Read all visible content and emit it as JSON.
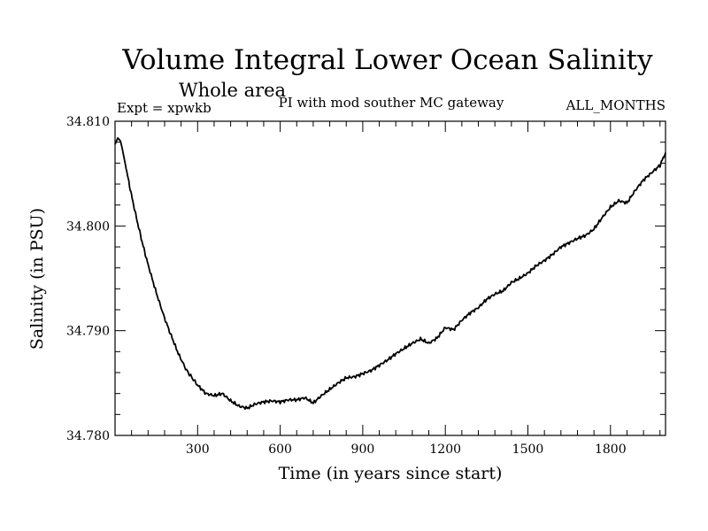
{
  "chart_data": {
    "type": "line",
    "title": "Volume Integral Lower Ocean Salinity",
    "subtitle": "Whole area",
    "annotation_left": "Expt = xpwkb",
    "annotation_center": "PI with mod souther MC gateway",
    "annotation_right": "ALL_MONTHS",
    "xlabel": "Time (in years since start)",
    "ylabel": "Salinity (in PSU)",
    "xlim": [
      0,
      2000
    ],
    "ylim": [
      34.78,
      34.81
    ],
    "xticks": [
      300,
      600,
      900,
      1200,
      1500,
      1800
    ],
    "xtick_labels": [
      "300",
      "600",
      "900",
      "1200",
      "1500",
      "1800"
    ],
    "yticks": [
      34.78,
      34.79,
      34.8,
      34.81
    ],
    "ytick_labels": [
      "34.780",
      "34.790",
      "34.800",
      "34.810"
    ],
    "grid": false,
    "series": [
      {
        "name": "xpwkb",
        "color": "#000000",
        "x": [
          0,
          10,
          20,
          30,
          40,
          60,
          80,
          100,
          120,
          150,
          180,
          200,
          230,
          260,
          300,
          330,
          360,
          390,
          420,
          450,
          480,
          510,
          540,
          570,
          600,
          630,
          660,
          690,
          720,
          750,
          780,
          810,
          840,
          870,
          900,
          930,
          960,
          990,
          1020,
          1050,
          1080,
          1110,
          1140,
          1170,
          1200,
          1230,
          1260,
          1290,
          1320,
          1350,
          1380,
          1410,
          1440,
          1470,
          1500,
          1530,
          1560,
          1590,
          1620,
          1650,
          1680,
          1710,
          1740,
          1770,
          1800,
          1830,
          1860,
          1890,
          1920,
          1950,
          1980,
          2000
        ],
        "y": [
          34.8078,
          34.8084,
          34.8081,
          34.8069,
          34.8055,
          34.8029,
          34.8005,
          34.7983,
          34.7963,
          34.7936,
          34.7912,
          34.7898,
          34.7878,
          34.7862,
          34.7848,
          34.784,
          34.7838,
          34.784,
          34.7833,
          34.7828,
          34.7826,
          34.783,
          34.7832,
          34.7833,
          34.7832,
          34.7834,
          34.7834,
          34.7836,
          34.7831,
          34.7838,
          34.7844,
          34.785,
          34.7855,
          34.7856,
          34.7859,
          34.7862,
          34.7867,
          34.7872,
          34.7878,
          34.7883,
          34.7888,
          34.7892,
          34.7888,
          34.7893,
          34.7903,
          34.7901,
          34.791,
          34.7917,
          34.7922,
          34.793,
          34.7935,
          34.7938,
          34.7946,
          34.795,
          34.7955,
          34.7962,
          34.7967,
          34.7973,
          34.798,
          34.7984,
          34.7988,
          34.7991,
          34.7997,
          34.8008,
          34.8018,
          34.8024,
          34.8022,
          34.8034,
          34.8044,
          34.8051,
          34.8058,
          34.807
        ]
      }
    ]
  }
}
